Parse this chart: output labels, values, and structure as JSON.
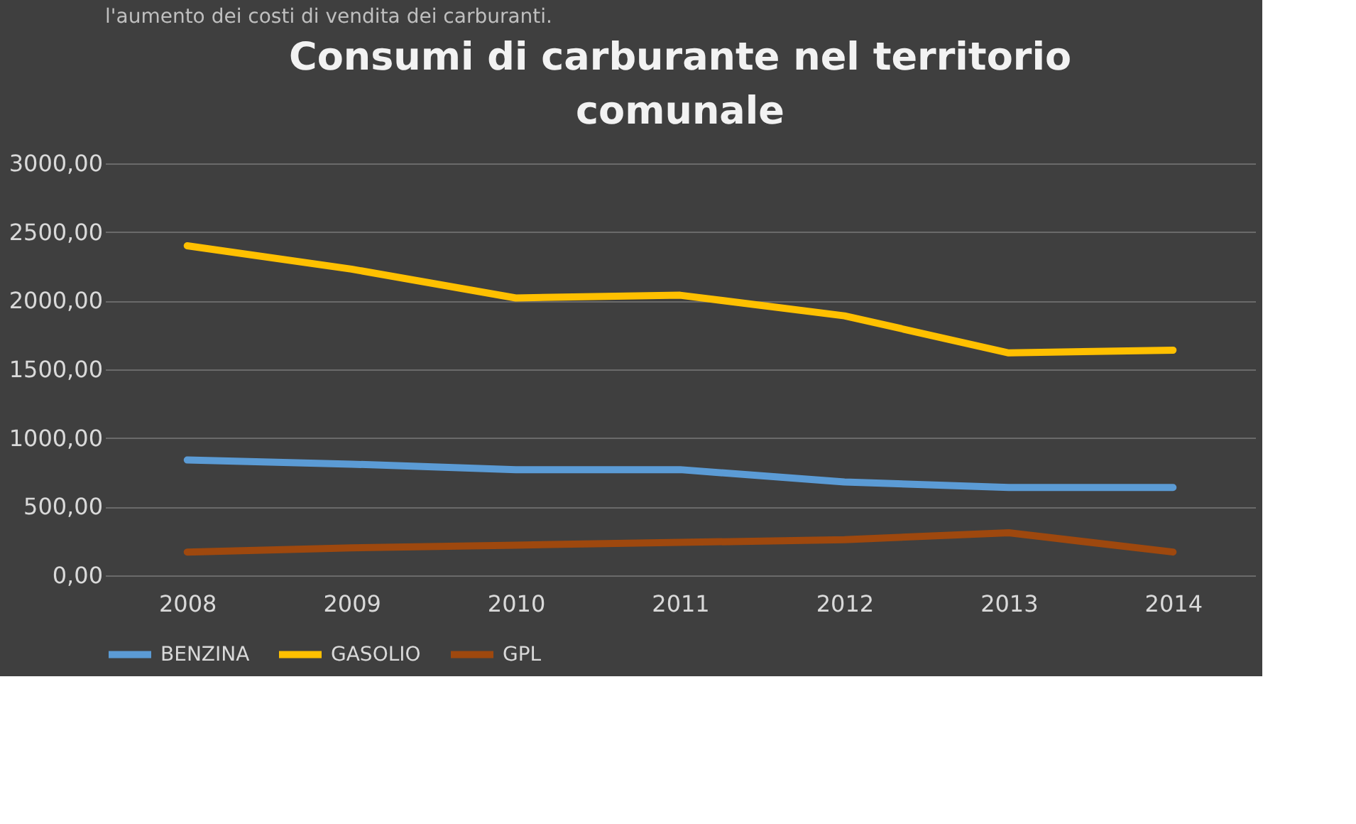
{
  "chart_data": {
    "type": "line",
    "title": "Consumi di carburante nel territorio comunale",
    "annotations": [
      "l'aumento dei costi di vendita dei carburanti."
    ],
    "categories": [
      "2008",
      "2009",
      "2010",
      "2011",
      "2012",
      "2013",
      "2014"
    ],
    "series": [
      {
        "name": "BENZINA",
        "color": "#5b9bd5",
        "values": [
          840,
          810,
          770,
          770,
          680,
          640,
          640
        ]
      },
      {
        "name": "GASOLIO",
        "color": "#ffc000",
        "values": [
          2400,
          2230,
          2020,
          2040,
          1890,
          1620,
          1640
        ]
      },
      {
        "name": "GPL",
        "color": "#9e480e",
        "values": [
          170,
          200,
          220,
          240,
          260,
          310,
          170
        ]
      }
    ],
    "ylim": [
      0,
      3000
    ],
    "yticks": [
      {
        "value": 0,
        "label": "0,00"
      },
      {
        "value": 500,
        "label": "500,00"
      },
      {
        "value": 1000,
        "label": "1000,00"
      },
      {
        "value": 1500,
        "label": "1500,00"
      },
      {
        "value": 2000,
        "label": "2000,00"
      },
      {
        "value": 2500,
        "label": "2500,00"
      },
      {
        "value": 3000,
        "label": "3000,00"
      }
    ],
    "grid": "y",
    "legend": "bottom",
    "marker": "none",
    "line_style": "solid"
  }
}
